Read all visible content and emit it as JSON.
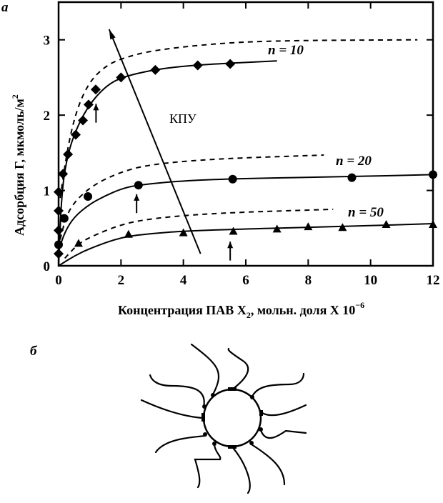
{
  "panel_labels": {
    "a": "а",
    "b": "б"
  },
  "chart_data": {
    "type": "scatter",
    "title": "",
    "xlabel": "Концентрация ПАВ X",
    "xlabel_sub": "2",
    "xlabel_tail": ", мольн. доля X 10",
    "xlabel_sup": "−6",
    "ylabel": "Адсорбция Г, мкмоль/м",
    "ylabel_sup": "2",
    "xlim": [
      0,
      12
    ],
    "ylim": [
      0,
      3.5
    ],
    "xticks": [
      "0",
      "2",
      "4",
      "6",
      "8",
      "10",
      "12"
    ],
    "yticks": [
      "0",
      "1",
      "2",
      "3"
    ],
    "grid": false,
    "annotations": {
      "kpu": "КПУ",
      "n10": "n = 10",
      "n20": "n = 20",
      "n50": "n = 50"
    },
    "series": [
      {
        "name": "n = 10",
        "marker": "diamond",
        "x": [
          0,
          0,
          0,
          0,
          0.14,
          0.3,
          0.55,
          0.78,
          0.96,
          1.19,
          2.0,
          3.1,
          4.46,
          5.5
        ],
        "y": [
          0.16,
          0.47,
          0.73,
          0.98,
          1.22,
          1.48,
          1.74,
          1.93,
          2.14,
          2.34,
          2.5,
          2.6,
          2.66,
          2.68
        ],
        "fit": [
          [
            0,
            0
          ],
          [
            0.1,
            1.0
          ],
          [
            0.3,
            1.5
          ],
          [
            0.6,
            1.85
          ],
          [
            1,
            2.15
          ],
          [
            1.5,
            2.38
          ],
          [
            2,
            2.5
          ],
          [
            3,
            2.6
          ],
          [
            4,
            2.65
          ],
          [
            5,
            2.68
          ],
          [
            7,
            2.72
          ]
        ],
        "model": [
          [
            0.05,
            0.9
          ],
          [
            0.3,
            1.6
          ],
          [
            0.6,
            2.1
          ],
          [
            1,
            2.45
          ],
          [
            1.5,
            2.65
          ],
          [
            2,
            2.75
          ],
          [
            3,
            2.86
          ],
          [
            5,
            2.95
          ],
          [
            7,
            2.99
          ],
          [
            11.5,
            3.0
          ]
        ]
      },
      {
        "name": "n = 20",
        "marker": "circle",
        "x": [
          0,
          0.18,
          0.94,
          2.56,
          5.58,
          9.4,
          12
        ],
        "y": [
          0.28,
          0.63,
          0.92,
          1.07,
          1.15,
          1.17,
          1.21
        ],
        "fit": [
          [
            0,
            0.2
          ],
          [
            0.2,
            0.45
          ],
          [
            0.5,
            0.65
          ],
          [
            1,
            0.82
          ],
          [
            1.5,
            0.93
          ],
          [
            2,
            1.02
          ],
          [
            2.5,
            1.07
          ],
          [
            4,
            1.13
          ],
          [
            6,
            1.16
          ],
          [
            9,
            1.18
          ],
          [
            12,
            1.21
          ]
        ],
        "model": [
          [
            0.05,
            0.35
          ],
          [
            0.3,
            0.75
          ],
          [
            1,
            1.05
          ],
          [
            2,
            1.25
          ],
          [
            3,
            1.35
          ],
          [
            5,
            1.42
          ],
          [
            8.5,
            1.47
          ]
        ]
      },
      {
        "name": "n = 50",
        "marker": "triangle",
        "x": [
          0.64,
          2.24,
          4.0,
          5.6,
          7.0,
          8.0,
          9.1,
          10.5,
          12
        ],
        "y": [
          0.3,
          0.42,
          0.44,
          0.46,
          0.49,
          0.52,
          0.51,
          0.55,
          0.55
        ],
        "fit": [
          [
            0,
            0
          ],
          [
            0.5,
            0.13
          ],
          [
            1,
            0.23
          ],
          [
            2,
            0.38
          ],
          [
            3,
            0.43
          ],
          [
            4,
            0.46
          ],
          [
            6,
            0.49
          ],
          [
            9,
            0.52
          ],
          [
            12,
            0.56
          ]
        ],
        "model": [
          [
            0.2,
            0.1
          ],
          [
            0.6,
            0.28
          ],
          [
            1,
            0.38
          ],
          [
            2,
            0.55
          ],
          [
            3,
            0.63
          ],
          [
            5,
            0.7
          ],
          [
            8.8,
            0.75
          ]
        ]
      }
    ],
    "kpu_arrow": {
      "from": [
        4.55,
        0.16
      ],
      "to": [
        1.62,
        3.14
      ]
    },
    "cmc_arrows": [
      {
        "x": 1.2,
        "y_from": 1.9,
        "y_to": 2.15
      },
      {
        "x": 2.5,
        "y_from": 0.7,
        "y_to": 0.95
      },
      {
        "x": 5.5,
        "y_from": 0.07,
        "y_to": 0.32
      }
    ]
  }
}
